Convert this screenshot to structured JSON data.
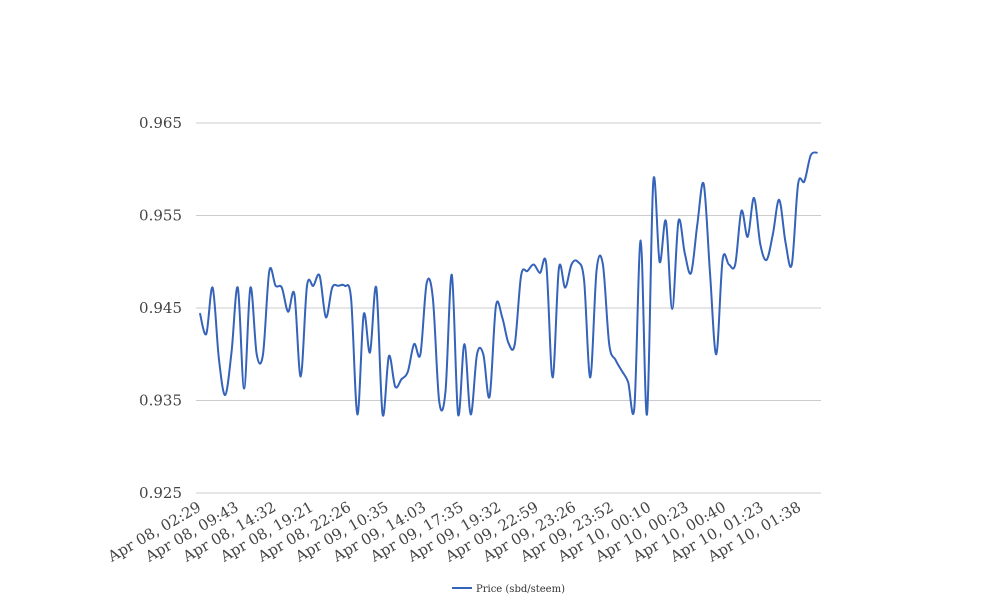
{
  "chart_data": {
    "type": "line",
    "title": "",
    "xlabel": "",
    "ylabel": "",
    "ylim": [
      0.925,
      0.965
    ],
    "yticks": [
      "0.925",
      "0.935",
      "0.945",
      "0.955",
      "0.965"
    ],
    "xticks": [
      "Apr 08, 02:29",
      "Apr 08, 09:43",
      "Apr 08, 14:32",
      "Apr 08, 19:21",
      "Apr 08, 22:26",
      "Apr 09, 10:35",
      "Apr 09, 14:03",
      "Apr 09, 17:35",
      "Apr 09, 19:32",
      "Apr 09, 22:59",
      "Apr 09, 23:26",
      "Apr 09, 23:52",
      "Apr 10, 00:10",
      "Apr 10, 00:23",
      "Apr 10, 00:40",
      "Apr 10, 01:23",
      "Apr 10, 01:38"
    ],
    "grid": true,
    "legend_position": "bottom-center",
    "series": [
      {
        "name": "Price (sbd/steem)",
        "color": "#3563b9",
        "values": [
          0.9444,
          0.9422,
          0.9472,
          0.9395,
          0.9356,
          0.9402,
          0.9472,
          0.9363,
          0.9472,
          0.94,
          0.94,
          0.949,
          0.9474,
          0.9472,
          0.9446,
          0.9465,
          0.9376,
          0.9474,
          0.9474,
          0.9485,
          0.944,
          0.9472,
          0.9474,
          0.9474,
          0.946,
          0.9335,
          0.9443,
          0.9402,
          0.9472,
          0.9335,
          0.9398,
          0.9365,
          0.9373,
          0.9381,
          0.9411,
          0.94,
          0.9477,
          0.946,
          0.9349,
          0.936,
          0.9486,
          0.9335,
          0.9411,
          0.9335,
          0.94,
          0.94,
          0.9354,
          0.9452,
          0.944,
          0.9412,
          0.9411,
          0.9485,
          0.949,
          0.9497,
          0.9488,
          0.9497,
          0.9375,
          0.9493,
          0.9472,
          0.9497,
          0.95,
          0.948,
          0.9375,
          0.9491,
          0.9497,
          0.9411,
          0.9394,
          0.9382,
          0.937,
          0.9343,
          0.9523,
          0.9335,
          0.9587,
          0.95,
          0.9544,
          0.9449,
          0.9544,
          0.9509,
          0.9488,
          0.9541,
          0.9584,
          0.9488,
          0.94,
          0.9502,
          0.9497,
          0.9497,
          0.9555,
          0.9527,
          0.9569,
          0.9519,
          0.9502,
          0.953,
          0.9567,
          0.9521,
          0.9497,
          0.9584,
          0.9587,
          0.9615,
          0.9618
        ]
      }
    ]
  }
}
